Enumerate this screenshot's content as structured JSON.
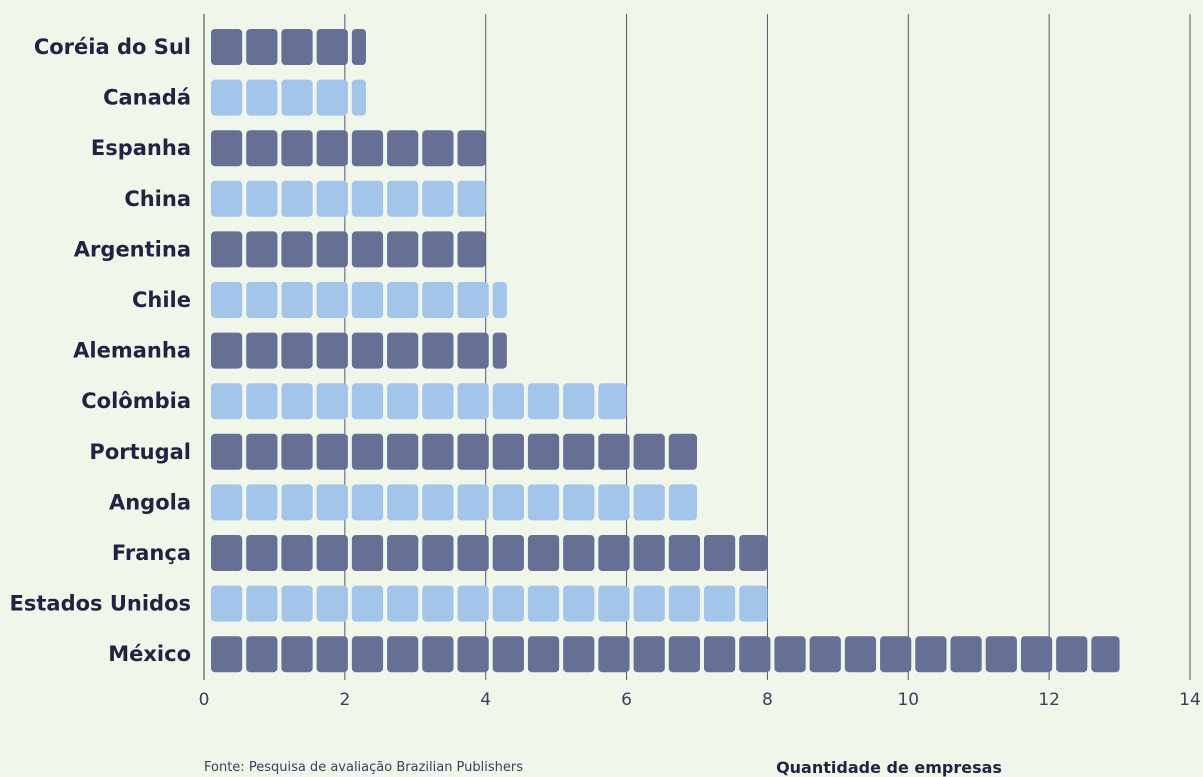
{
  "chart_data": {
    "type": "bar",
    "orientation": "horizontal",
    "categories": [
      "Coréia do Sul",
      "Canadá",
      "Espanha",
      "China",
      "Argentina",
      "Chile",
      "Alemanha",
      "Colômbia",
      "Portugal",
      "Angola",
      "França",
      "Estados Unidos",
      "México"
    ],
    "values": [
      2.3,
      2.3,
      4,
      4,
      4,
      4.3,
      4.3,
      6,
      7,
      7,
      8,
      8,
      13
    ],
    "xlim": [
      0,
      14
    ],
    "xticks": [
      0,
      2,
      4,
      6,
      8,
      10,
      12,
      14
    ],
    "xlabel": "Quantidade de empresas",
    "grid": true,
    "colors": {
      "dark": "#666f94",
      "light": "#a3c5ea",
      "grid": "#55586a",
      "axis": "#55586a"
    }
  },
  "source": "Fonte: Pesquisa de avaliação Brazilian Publishers"
}
